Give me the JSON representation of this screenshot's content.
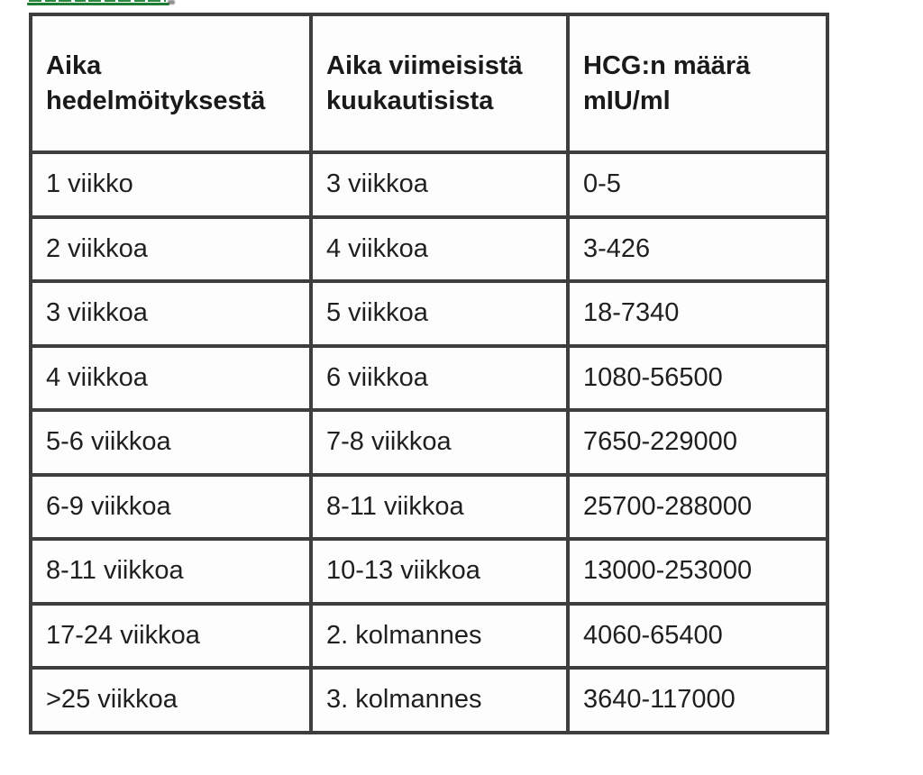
{
  "page": {
    "background_color": "#ffffff"
  },
  "top_link": {
    "color": "#1d7c33",
    "underline_color": "#1d7c33"
  },
  "table": {
    "border_color": "#3e3e3e",
    "header_labels": [
      "Aika hedelmöityksestä",
      "Aika viimeisistä kuukautisista",
      "HCG:n määrä mIU/ml"
    ],
    "rows": [
      [
        "1 viikko",
        "3 viikkoa",
        "0-5"
      ],
      [
        "2 viikkoa",
        "4 viikkoa",
        "3-426"
      ],
      [
        "3 viikkoa",
        "5 viikkoa",
        "18-7340"
      ],
      [
        "4 viikkoa",
        "6 viikkoa",
        "1080-56500"
      ],
      [
        "5-6 viikkoa",
        "7-8 viikkoa",
        "7650-229000"
      ],
      [
        "6-9 viikkoa",
        "8-11 viikkoa",
        "25700-288000"
      ],
      [
        "8-11 viikkoa",
        "10-13 viikkoa",
        "13000-253000"
      ],
      [
        "17-24 viikkoa",
        "2. kolmannes",
        "4060-65400"
      ],
      [
        ">25 viikkoa",
        "3. kolmannes",
        "3640-117000"
      ]
    ]
  }
}
